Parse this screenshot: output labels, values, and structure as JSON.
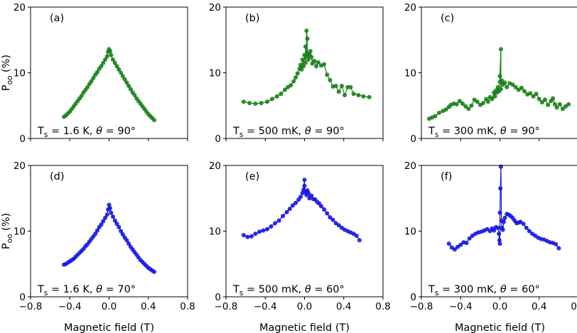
{
  "figure": {
    "xlabel": "Magnetic field (T)",
    "ylabel_main": "P",
    "ylabel_sub": "oo",
    "ylabel_unit": " (%)"
  },
  "chart_data": [
    {
      "type": "line",
      "label": "(a)",
      "row": 0,
      "col": 0,
      "color": "#178017",
      "cond": {
        "pre": "T",
        "sub": "s",
        "mid": " = 1.6 K, ",
        "theta": "θ",
        "post": " = 90°"
      },
      "xlim": [
        -0.8,
        0.8
      ],
      "ylim": [
        0,
        20
      ],
      "xticks": [
        "−0.8",
        "−0.4",
        "0.0",
        "0.4",
        "0.8"
      ],
      "yticks": [
        "0",
        "10",
        "20"
      ],
      "points": [
        [
          -0.46,
          3.3
        ],
        [
          -0.44,
          3.5
        ],
        [
          -0.42,
          3.8
        ],
        [
          -0.4,
          4.1
        ],
        [
          -0.38,
          4.5
        ],
        [
          -0.36,
          4.9
        ],
        [
          -0.34,
          5.3
        ],
        [
          -0.32,
          5.7
        ],
        [
          -0.3,
          6.1
        ],
        [
          -0.28,
          6.5
        ],
        [
          -0.26,
          7.0
        ],
        [
          -0.24,
          7.4
        ],
        [
          -0.22,
          7.8
        ],
        [
          -0.2,
          8.3
        ],
        [
          -0.18,
          8.7
        ],
        [
          -0.16,
          9.2
        ],
        [
          -0.14,
          9.7
        ],
        [
          -0.12,
          10.1
        ],
        [
          -0.1,
          10.6
        ],
        [
          -0.08,
          11.0
        ],
        [
          -0.06,
          11.5
        ],
        [
          -0.04,
          12.0
        ],
        [
          -0.02,
          12.5
        ],
        [
          -0.01,
          13.2
        ],
        [
          0.0,
          13.6
        ],
        [
          0.01,
          13.3
        ],
        [
          0.02,
          12.7
        ],
        [
          0.04,
          12.0
        ],
        [
          0.06,
          11.5
        ],
        [
          0.08,
          11.0
        ],
        [
          0.1,
          10.5
        ],
        [
          0.12,
          10.0
        ],
        [
          0.14,
          9.5
        ],
        [
          0.16,
          9.0
        ],
        [
          0.18,
          8.5
        ],
        [
          0.2,
          8.0
        ],
        [
          0.22,
          7.5
        ],
        [
          0.24,
          7.0
        ],
        [
          0.26,
          6.6
        ],
        [
          0.28,
          6.1
        ],
        [
          0.3,
          5.7
        ],
        [
          0.32,
          5.3
        ],
        [
          0.34,
          4.9
        ],
        [
          0.36,
          4.5
        ],
        [
          0.38,
          4.1
        ],
        [
          0.4,
          3.7
        ],
        [
          0.42,
          3.4
        ],
        [
          0.44,
          3.1
        ],
        [
          0.46,
          2.8
        ]
      ]
    },
    {
      "type": "line",
      "label": "(b)",
      "row": 0,
      "col": 1,
      "color": "#178017",
      "cond": {
        "pre": "T",
        "sub": "s",
        "mid": " = 500 mK, ",
        "theta": "θ",
        "post": " = 90°"
      },
      "xlim": [
        -0.8,
        0.8
      ],
      "ylim": [
        0,
        20
      ],
      "xticks": [
        "−0.8",
        "−0.4",
        "0.0",
        "0.4",
        "0.8"
      ],
      "yticks": [
        "0",
        "10",
        "20"
      ],
      "points": [
        [
          -0.62,
          5.6
        ],
        [
          -0.56,
          5.4
        ],
        [
          -0.5,
          5.3
        ],
        [
          -0.44,
          5.4
        ],
        [
          -0.38,
          5.6
        ],
        [
          -0.33,
          6.0
        ],
        [
          -0.28,
          6.4
        ],
        [
          -0.24,
          6.8
        ],
        [
          -0.2,
          7.4
        ],
        [
          -0.17,
          7.8
        ],
        [
          -0.14,
          8.1
        ],
        [
          -0.11,
          8.7
        ],
        [
          -0.09,
          9.3
        ],
        [
          -0.07,
          9.9
        ],
        [
          -0.05,
          10.6
        ],
        [
          -0.04,
          11.2
        ],
        [
          -0.03,
          10.5
        ],
        [
          -0.02,
          12.0
        ],
        [
          -0.01,
          11.0
        ],
        [
          0.0,
          12.7
        ],
        [
          0.01,
          11.5
        ],
        [
          0.01,
          14.0
        ],
        [
          0.02,
          12.5
        ],
        [
          0.02,
          16.4
        ],
        [
          0.03,
          15.2
        ],
        [
          0.03,
          13.0
        ],
        [
          0.04,
          12.0
        ],
        [
          0.05,
          12.8
        ],
        [
          0.06,
          13.3
        ],
        [
          0.07,
          12.4
        ],
        [
          0.08,
          11.4
        ],
        [
          0.1,
          11.8
        ],
        [
          0.12,
          11.0
        ],
        [
          0.14,
          11.6
        ],
        [
          0.17,
          11.1
        ],
        [
          0.2,
          11.3
        ],
        [
          0.23,
          9.7
        ],
        [
          0.26,
          8.9
        ],
        [
          0.29,
          7.9
        ],
        [
          0.32,
          8.0
        ],
        [
          0.35,
          7.1
        ],
        [
          0.38,
          8.0
        ],
        [
          0.41,
          6.6
        ],
        [
          0.44,
          7.8
        ],
        [
          0.47,
          7.8
        ],
        [
          0.5,
          6.8
        ],
        [
          0.55,
          6.6
        ],
        [
          0.6,
          6.4
        ],
        [
          0.66,
          6.3
        ]
      ]
    },
    {
      "type": "line",
      "label": "(c)",
      "row": 0,
      "col": 2,
      "color": "#178017",
      "cond": {
        "pre": "T",
        "sub": "s",
        "mid": " = 300 mK, ",
        "theta": "θ",
        "post": " = 90°"
      },
      "xlim": [
        -0.8,
        0.8
      ],
      "ylim": [
        0,
        20
      ],
      "xticks": [
        "−0.8",
        "−0.4",
        "0.0",
        "0.4",
        "0.8"
      ],
      "yticks": [
        "0",
        "10",
        "20"
      ],
      "points": [
        [
          -0.72,
          3.0
        ],
        [
          -0.69,
          3.2
        ],
        [
          -0.66,
          3.4
        ],
        [
          -0.62,
          3.9
        ],
        [
          -0.58,
          4.2
        ],
        [
          -0.55,
          4.4
        ],
        [
          -0.52,
          4.8
        ],
        [
          -0.5,
          5.1
        ],
        [
          -0.47,
          5.3
        ],
        [
          -0.44,
          5.2
        ],
        [
          -0.41,
          5.7
        ],
        [
          -0.38,
          5.3
        ],
        [
          -0.35,
          4.9
        ],
        [
          -0.32,
          4.5
        ],
        [
          -0.29,
          5.0
        ],
        [
          -0.26,
          5.9
        ],
        [
          -0.23,
          5.6
        ],
        [
          -0.2,
          5.1
        ],
        [
          -0.17,
          5.4
        ],
        [
          -0.14,
          6.0
        ],
        [
          -0.12,
          5.6
        ],
        [
          -0.1,
          6.3
        ],
        [
          -0.08,
          6.0
        ],
        [
          -0.06,
          7.0
        ],
        [
          -0.05,
          6.4
        ],
        [
          -0.04,
          7.3
        ],
        [
          -0.03,
          7.0
        ],
        [
          -0.02,
          7.8
        ],
        [
          -0.01,
          7.2
        ],
        [
          0.0,
          8.6
        ],
        [
          0.0,
          9.5
        ],
        [
          0.01,
          13.6
        ],
        [
          0.01,
          7.5
        ],
        [
          0.02,
          8.8
        ],
        [
          0.03,
          8.2
        ],
        [
          0.05,
          8.5
        ],
        [
          0.07,
          7.8
        ],
        [
          0.1,
          8.4
        ],
        [
          0.13,
          8.2
        ],
        [
          0.16,
          7.8
        ],
        [
          0.19,
          7.4
        ],
        [
          0.22,
          7.7
        ],
        [
          0.25,
          7.2
        ],
        [
          0.28,
          6.7
        ],
        [
          0.31,
          6.9
        ],
        [
          0.34,
          6.4
        ],
        [
          0.37,
          6.8
        ],
        [
          0.4,
          6.0
        ],
        [
          0.43,
          5.5
        ],
        [
          0.46,
          5.9
        ],
        [
          0.49,
          5.1
        ],
        [
          0.52,
          5.7
        ],
        [
          0.54,
          6.1
        ],
        [
          0.56,
          5.2
        ],
        [
          0.58,
          4.7
        ],
        [
          0.61,
          5.2
        ],
        [
          0.64,
          4.5
        ],
        [
          0.67,
          4.9
        ],
        [
          0.7,
          5.2
        ]
      ]
    },
    {
      "type": "line",
      "label": "(d)",
      "row": 1,
      "col": 0,
      "color": "#1515e0",
      "cond": {
        "pre": "T",
        "sub": "s",
        "mid": " = 1.6 K, ",
        "theta": "θ",
        "post": " = 70°"
      },
      "xlim": [
        -0.8,
        0.8
      ],
      "ylim": [
        0,
        20
      ],
      "xticks": [
        "−0.8",
        "−0.4",
        "0.0",
        "0.4",
        "0.8"
      ],
      "yticks": [
        "0",
        "10",
        "20"
      ],
      "points": [
        [
          -0.46,
          4.9
        ],
        [
          -0.44,
          5.0
        ],
        [
          -0.42,
          5.2
        ],
        [
          -0.4,
          5.4
        ],
        [
          -0.38,
          5.6
        ],
        [
          -0.36,
          5.8
        ],
        [
          -0.34,
          6.1
        ],
        [
          -0.32,
          6.4
        ],
        [
          -0.3,
          6.7
        ],
        [
          -0.28,
          7.0
        ],
        [
          -0.26,
          7.3
        ],
        [
          -0.24,
          7.7
        ],
        [
          -0.22,
          8.0
        ],
        [
          -0.2,
          8.4
        ],
        [
          -0.18,
          8.8
        ],
        [
          -0.16,
          9.2
        ],
        [
          -0.14,
          9.6
        ],
        [
          -0.12,
          10.1
        ],
        [
          -0.1,
          10.6
        ],
        [
          -0.08,
          11.0
        ],
        [
          -0.06,
          11.5
        ],
        [
          -0.04,
          12.0
        ],
        [
          -0.02,
          12.5
        ],
        [
          -0.01,
          13.3
        ],
        [
          0.0,
          14.0
        ],
        [
          0.01,
          13.5
        ],
        [
          0.02,
          12.8
        ],
        [
          0.04,
          12.2
        ],
        [
          0.06,
          11.6
        ],
        [
          0.08,
          11.1
        ],
        [
          0.1,
          10.6
        ],
        [
          0.12,
          10.0
        ],
        [
          0.14,
          9.5
        ],
        [
          0.16,
          9.0
        ],
        [
          0.18,
          8.6
        ],
        [
          0.2,
          8.1
        ],
        [
          0.22,
          7.6
        ],
        [
          0.24,
          7.2
        ],
        [
          0.26,
          6.8
        ],
        [
          0.28,
          6.4
        ],
        [
          0.3,
          6.0
        ],
        [
          0.32,
          5.6
        ],
        [
          0.34,
          5.3
        ],
        [
          0.36,
          5.0
        ],
        [
          0.38,
          4.7
        ],
        [
          0.4,
          4.4
        ],
        [
          0.42,
          4.2
        ],
        [
          0.44,
          4.0
        ],
        [
          0.46,
          3.8
        ]
      ]
    },
    {
      "type": "line",
      "label": "(e)",
      "row": 1,
      "col": 1,
      "color": "#1515e0",
      "cond": {
        "pre": "T",
        "sub": "s",
        "mid": " = 500 mK, ",
        "theta": "θ",
        "post": " = 60°"
      },
      "xlim": [
        -0.8,
        0.8
      ],
      "ylim": [
        0,
        20
      ],
      "xticks": [
        "−0.8",
        "−0.4",
        "0.0",
        "0.4",
        "0.8"
      ],
      "yticks": [
        "0",
        "10",
        "20"
      ],
      "points": [
        [
          -0.62,
          9.4
        ],
        [
          -0.58,
          9.1
        ],
        [
          -0.54,
          9.2
        ],
        [
          -0.5,
          9.6
        ],
        [
          -0.46,
          9.9
        ],
        [
          -0.42,
          10.1
        ],
        [
          -0.38,
          10.3
        ],
        [
          -0.34,
          10.7
        ],
        [
          -0.3,
          11.2
        ],
        [
          -0.26,
          11.6
        ],
        [
          -0.22,
          12.3
        ],
        [
          -0.18,
          12.9
        ],
        [
          -0.15,
          13.4
        ],
        [
          -0.12,
          13.9
        ],
        [
          -0.09,
          14.3
        ],
        [
          -0.06,
          14.8
        ],
        [
          -0.04,
          15.2
        ],
        [
          -0.02,
          15.8
        ],
        [
          -0.01,
          16.3
        ],
        [
          0.0,
          17.8
        ],
        [
          0.0,
          16.9
        ],
        [
          0.01,
          16.0
        ],
        [
          0.02,
          15.5
        ],
        [
          0.03,
          16.2
        ],
        [
          0.04,
          15.8
        ],
        [
          0.05,
          15.0
        ],
        [
          0.07,
          15.4
        ],
        [
          0.09,
          14.9
        ],
        [
          0.11,
          14.8
        ],
        [
          0.13,
          14.4
        ],
        [
          0.15,
          14.2
        ],
        [
          0.17,
          13.8
        ],
        [
          0.2,
          13.3
        ],
        [
          0.23,
          12.7
        ],
        [
          0.26,
          12.1
        ],
        [
          0.29,
          11.7
        ],
        [
          0.32,
          11.2
        ],
        [
          0.35,
          10.9
        ],
        [
          0.38,
          10.5
        ],
        [
          0.41,
          10.2
        ],
        [
          0.44,
          10.0
        ],
        [
          0.47,
          9.8
        ],
        [
          0.5,
          9.6
        ],
        [
          0.53,
          9.3
        ],
        [
          0.56,
          8.6
        ]
      ]
    },
    {
      "type": "line",
      "label": "(f)",
      "row": 1,
      "col": 2,
      "color": "#1515e0",
      "cond": {
        "pre": "T",
        "sub": "s",
        "mid": " = 300 mK, ",
        "theta": "θ",
        "post": " = 60°"
      },
      "xlim": [
        -0.8,
        0.8
      ],
      "ylim": [
        0,
        20
      ],
      "xticks": [
        "−0.8",
        "−0.4",
        "0.0",
        "0.4",
        "0.8"
      ],
      "yticks": [
        "0",
        "10",
        "20"
      ],
      "points": [
        [
          -0.52,
          8.1
        ],
        [
          -0.49,
          7.5
        ],
        [
          -0.46,
          7.2
        ],
        [
          -0.43,
          7.6
        ],
        [
          -0.4,
          7.9
        ],
        [
          -0.37,
          8.3
        ],
        [
          -0.34,
          8.2
        ],
        [
          -0.31,
          8.9
        ],
        [
          -0.28,
          9.3
        ],
        [
          -0.25,
          9.6
        ],
        [
          -0.22,
          9.8
        ],
        [
          -0.19,
          9.9
        ],
        [
          -0.16,
          10.1
        ],
        [
          -0.13,
          10.3
        ],
        [
          -0.1,
          10.0
        ],
        [
          -0.08,
          10.4
        ],
        [
          -0.06,
          10.1
        ],
        [
          -0.04,
          10.6
        ],
        [
          -0.02,
          10.5
        ],
        [
          -0.01,
          9.6
        ],
        [
          -0.005,
          8.6
        ],
        [
          0.0,
          8.1
        ],
        [
          0.0,
          12.8
        ],
        [
          0.005,
          16.5
        ],
        [
          0.01,
          19.8
        ],
        [
          0.015,
          11.6
        ],
        [
          0.02,
          10.5
        ],
        [
          0.03,
          10.2
        ],
        [
          0.04,
          11.4
        ],
        [
          0.05,
          12.0
        ],
        [
          0.07,
          12.6
        ],
        [
          0.09,
          12.5
        ],
        [
          0.11,
          12.3
        ],
        [
          0.13,
          12.0
        ],
        [
          0.15,
          11.6
        ],
        [
          0.17,
          11.2
        ],
        [
          0.19,
          11.3
        ],
        [
          0.21,
          11.4
        ],
        [
          0.24,
          11.1
        ],
        [
          0.27,
          10.5
        ],
        [
          0.3,
          10.0
        ],
        [
          0.33,
          9.6
        ],
        [
          0.36,
          9.3
        ],
        [
          0.39,
          9.0
        ],
        [
          0.42,
          8.8
        ],
        [
          0.45,
          8.7
        ],
        [
          0.48,
          8.5
        ],
        [
          0.51,
          8.3
        ],
        [
          0.54,
          8.2
        ],
        [
          0.57,
          8.0
        ],
        [
          0.6,
          7.4
        ]
      ]
    }
  ]
}
